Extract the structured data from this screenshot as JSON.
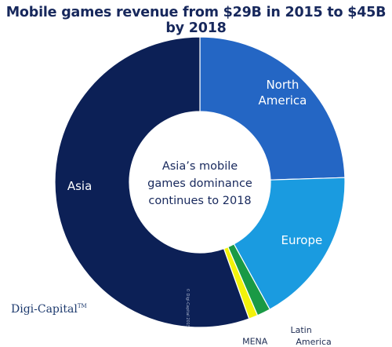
{
  "title": "Mobile games revenue from $29B in 2015 to $45B by 2018",
  "center_text": [
    "Asia’s mobile",
    "games dominance",
    "continues to 2018"
  ],
  "logo": {
    "name": "Digi-Capital",
    "mark": "TM"
  },
  "watermark": "© Digi-Capital 2015",
  "colors": {
    "Asia": "#0c2056",
    "North America": "#2466c4",
    "Europe": "#1a9be0",
    "Latin America": "#1a9a45",
    "MENA": "#f2f20a",
    "title": "#17285c"
  },
  "chart_data": {
    "type": "pie",
    "donut": true,
    "title": "Mobile games revenue from $29B in 2015 to $45B by 2018",
    "slices": [
      {
        "label": "North America",
        "value": 24.5
      },
      {
        "label": "Europe",
        "value": 17.5
      },
      {
        "label": "Latin America",
        "value": 1.5
      },
      {
        "label": "MENA",
        "value": 1.0
      },
      {
        "label": "Asia",
        "value": 55.5
      }
    ],
    "start_angle_deg": 0,
    "direction": "clockwise"
  }
}
